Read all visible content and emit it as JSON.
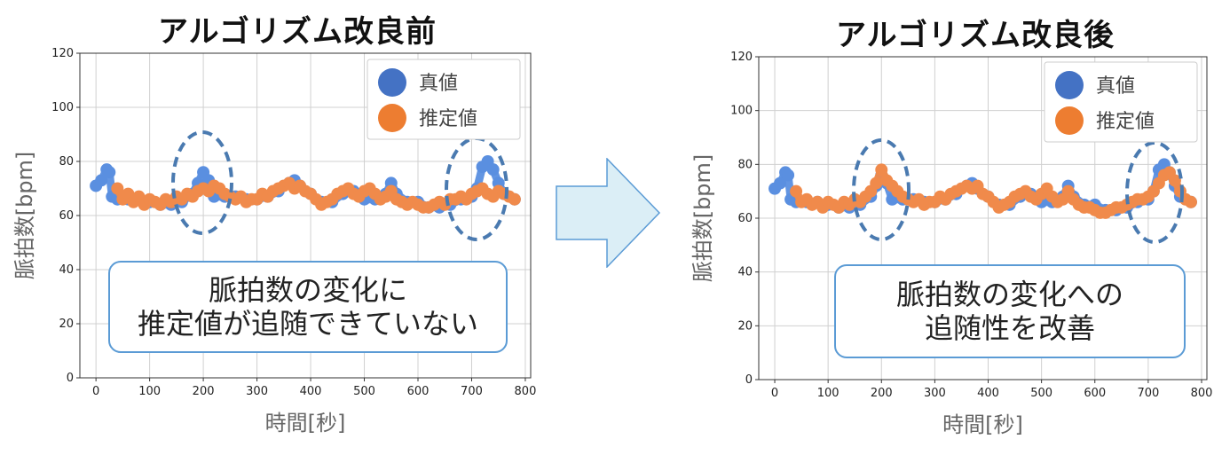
{
  "chart_data": [
    {
      "type": "scatter",
      "title": "アルゴリズム改良前",
      "xlabel": "時間[秒]",
      "ylabel": "脈拍数[bpm]",
      "xlim": [
        -30,
        810
      ],
      "ylim": [
        0,
        120
      ],
      "xticks": [
        0,
        100,
        200,
        300,
        400,
        500,
        600,
        700,
        800
      ],
      "yticks": [
        0,
        20,
        40,
        60,
        80,
        100,
        120
      ],
      "grid": true,
      "legend_position": "top-right",
      "series": [
        {
          "name": "真値",
          "color": "#4472c4",
          "x": [
            0,
            10,
            20,
            25,
            30,
            40,
            60,
            80,
            100,
            120,
            140,
            160,
            180,
            190,
            200,
            210,
            220,
            240,
            260,
            280,
            300,
            320,
            340,
            360,
            370,
            380,
            400,
            420,
            440,
            460,
            480,
            500,
            520,
            540,
            550,
            560,
            580,
            600,
            620,
            640,
            660,
            680,
            700,
            710,
            720,
            730,
            740,
            750,
            760,
            780
          ],
          "y": [
            71,
            73,
            77,
            76,
            67,
            66,
            66,
            66,
            65,
            64,
            64,
            65,
            68,
            72,
            76,
            73,
            67,
            67,
            67,
            66,
            66,
            67,
            69,
            72,
            73,
            71,
            68,
            65,
            65,
            68,
            69,
            66,
            66,
            68,
            72,
            68,
            65,
            65,
            63,
            63,
            64,
            66,
            67,
            70,
            78,
            80,
            77,
            72,
            68,
            66
          ]
        },
        {
          "name": "推定値",
          "color": "#ed7d31",
          "x": [
            40,
            50,
            60,
            70,
            80,
            90,
            100,
            110,
            120,
            130,
            140,
            150,
            160,
            170,
            180,
            190,
            200,
            210,
            220,
            230,
            240,
            250,
            260,
            270,
            280,
            290,
            300,
            310,
            320,
            330,
            340,
            350,
            360,
            370,
            380,
            390,
            400,
            410,
            420,
            430,
            440,
            450,
            460,
            470,
            480,
            490,
            500,
            510,
            520,
            530,
            540,
            550,
            560,
            570,
            580,
            590,
            600,
            610,
            620,
            630,
            640,
            650,
            660,
            670,
            680,
            690,
            700,
            710,
            720,
            730,
            740,
            750,
            760,
            770,
            780
          ],
          "y": [
            70,
            66,
            68,
            65,
            67,
            64,
            66,
            65,
            64,
            66,
            65,
            67,
            66,
            68,
            67,
            69,
            70,
            69,
            71,
            70,
            68,
            67,
            66,
            67,
            65,
            66,
            66,
            68,
            67,
            69,
            70,
            71,
            72,
            70,
            71,
            69,
            68,
            66,
            64,
            65,
            66,
            68,
            69,
            70,
            68,
            67,
            69,
            70,
            68,
            66,
            67,
            69,
            66,
            65,
            64,
            65,
            64,
            63,
            63,
            64,
            65,
            64,
            66,
            66,
            67,
            66,
            68,
            69,
            70,
            68,
            67,
            69,
            68,
            67,
            66
          ]
        }
      ]
    },
    {
      "type": "scatter",
      "title": "アルゴリズム改良後",
      "xlabel": "時間[秒]",
      "ylabel": "脈拍数[bpm]",
      "xlim": [
        -30,
        810
      ],
      "ylim": [
        0,
        120
      ],
      "xticks": [
        0,
        100,
        200,
        300,
        400,
        500,
        600,
        700,
        800
      ],
      "yticks": [
        0,
        20,
        40,
        60,
        80,
        100,
        120
      ],
      "grid": true,
      "legend_position": "top-right",
      "series": [
        {
          "name": "真値",
          "color": "#4472c4",
          "x": [
            0,
            10,
            20,
            25,
            30,
            40,
            60,
            80,
            100,
            120,
            140,
            160,
            180,
            190,
            200,
            210,
            220,
            240,
            260,
            280,
            300,
            320,
            340,
            360,
            370,
            380,
            400,
            420,
            440,
            460,
            480,
            500,
            520,
            540,
            550,
            560,
            580,
            600,
            620,
            640,
            660,
            680,
            700,
            710,
            720,
            730,
            740,
            750,
            760,
            780
          ],
          "y": [
            71,
            73,
            77,
            76,
            67,
            66,
            66,
            66,
            65,
            64,
            64,
            65,
            68,
            72,
            76,
            73,
            67,
            67,
            67,
            66,
            66,
            67,
            69,
            72,
            73,
            71,
            68,
            65,
            65,
            68,
            69,
            66,
            66,
            68,
            72,
            68,
            65,
            65,
            63,
            63,
            64,
            66,
            67,
            70,
            78,
            80,
            77,
            72,
            68,
            66
          ]
        },
        {
          "name": "推定値",
          "color": "#ed7d31",
          "x": [
            40,
            50,
            60,
            70,
            80,
            90,
            100,
            110,
            120,
            130,
            140,
            150,
            160,
            170,
            180,
            190,
            200,
            210,
            220,
            230,
            240,
            250,
            260,
            270,
            280,
            290,
            300,
            310,
            320,
            330,
            340,
            350,
            360,
            370,
            380,
            390,
            400,
            410,
            420,
            430,
            440,
            450,
            460,
            470,
            480,
            490,
            500,
            510,
            520,
            530,
            540,
            550,
            560,
            570,
            580,
            590,
            600,
            610,
            620,
            630,
            640,
            650,
            660,
            670,
            680,
            690,
            700,
            710,
            720,
            730,
            740,
            750,
            760,
            770,
            780
          ],
          "y": [
            70,
            66,
            67,
            65,
            66,
            64,
            66,
            65,
            64,
            66,
            65,
            67,
            66,
            68,
            70,
            73,
            78,
            74,
            72,
            70,
            68,
            67,
            66,
            67,
            65,
            66,
            66,
            68,
            67,
            69,
            70,
            71,
            72,
            71,
            72,
            69,
            68,
            66,
            64,
            65,
            66,
            68,
            69,
            70,
            68,
            67,
            69,
            71,
            68,
            66,
            67,
            70,
            67,
            65,
            64,
            64,
            63,
            62,
            62,
            63,
            64,
            64,
            65,
            66,
            67,
            67,
            68,
            70,
            73,
            76,
            77,
            74,
            70,
            67,
            66
          ]
        }
      ]
    }
  ],
  "callouts": [
    {
      "lines": [
        "脈拍数の変化に",
        "推定値が追随できていない"
      ]
    },
    {
      "lines": [
        "脈拍数の変化への",
        "追随性を改善"
      ]
    }
  ]
}
